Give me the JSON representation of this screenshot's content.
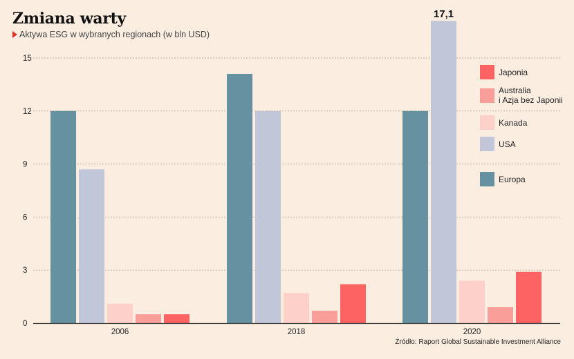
{
  "header": {
    "title": "Zmiana warty",
    "subtitle": "Aktywa ESG w wybranych regionach (w bln USD)"
  },
  "source": "Źródło: Raport Global Sustainable Investment Alliance",
  "colors": {
    "background": "#fbeee1",
    "Europa": "#6591a0",
    "USA": "#c1c7d8",
    "Kanada": "#fdd0c9",
    "Australia": "#fa9e99",
    "Japonia": "#fe6363"
  },
  "legend": [
    {
      "label_line1": "Japonia",
      "label_line2": "",
      "color": "#fe6363"
    },
    {
      "label_line1": "Australia",
      "label_line2": "i Azja bez Japonii",
      "color": "#fa9e99"
    },
    {
      "label_line1": "Kanada",
      "label_line2": "",
      "color": "#fdd0c9"
    },
    {
      "label_line1": "USA",
      "label_line2": "",
      "color": "#c1c7d8"
    },
    {
      "label_line1": "Europa",
      "label_line2": "",
      "color": "#6591a0"
    }
  ],
  "chart_data": {
    "type": "bar",
    "title": "Zmiana warty",
    "subtitle": "Aktywa ESG w wybranych regionach (w bln USD)",
    "categories": [
      "2006",
      "2018",
      "2020"
    ],
    "series": [
      {
        "name": "Europa",
        "color": "#6591a0",
        "values": [
          12.0,
          14.1,
          12.0
        ]
      },
      {
        "name": "USA",
        "color": "#c1c7d8",
        "values": [
          8.7,
          12.0,
          17.1
        ]
      },
      {
        "name": "Kanada",
        "color": "#fdd0c9",
        "values": [
          1.1,
          1.7,
          2.4
        ]
      },
      {
        "name": "Australia i Azja bez Japonii",
        "color": "#fa9e99",
        "values": [
          0.5,
          0.7,
          0.9
        ]
      },
      {
        "name": "Japonia",
        "color": "#fe6363",
        "values": [
          0.5,
          2.2,
          2.9
        ]
      }
    ],
    "yticks": [
      "0",
      "3",
      "6",
      "9",
      "12",
      "15"
    ],
    "ylim": [
      0,
      18
    ],
    "annotations": [
      {
        "text": "17,1",
        "category": "2020",
        "series": "USA"
      }
    ],
    "grid": true,
    "legend_position": "right",
    "xlabel": "",
    "ylabel": ""
  }
}
